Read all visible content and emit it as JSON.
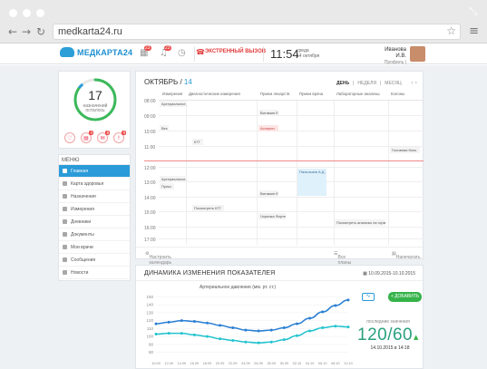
{
  "browser": {
    "url": "medkarta24.ru",
    "fullscreen_glyph": "⤡",
    "back_glyph": "←",
    "forward_glyph": "→",
    "reload_glyph": "↻",
    "star_glyph": "☆",
    "menu_glyph": "≡"
  },
  "header": {
    "logo": "МЕДКАРТА24",
    "badge_left": "23",
    "badge_mid": "23",
    "emergency": "ЭКСТРЕННЫЙ ВЫЗОВ",
    "time": "11:54",
    "weekday": "среда",
    "date": "14 октября",
    "user_name": "Иванова И.В.",
    "user_links": "Профиль | Выйти"
  },
  "widget": {
    "count": "17",
    "label_line1": "назначений",
    "label_line2": "осталось",
    "ring_fraction": 0.85,
    "icons": [
      {
        "name": "heart-icon",
        "glyph": "♡",
        "badge": ""
      },
      {
        "name": "clipboard-icon",
        "glyph": "▤",
        "badge": "4"
      },
      {
        "name": "mail-icon",
        "glyph": "✉",
        "badge": "8"
      }
    ],
    "alert_badge": "9"
  },
  "menu": {
    "title": "МЕНЮ",
    "items": [
      "Главная",
      "Карта здоровья",
      "Назначения",
      "Измерения",
      "Дневники",
      "Документы",
      "Мои врачи",
      "Сообщения",
      "Новости"
    ]
  },
  "calendar": {
    "month": "ОКТЯБРЬ",
    "day": "14",
    "view_day": "ДЕНЬ",
    "view_week": "НЕДЕЛЯ",
    "view_month": "МЕСЯЦ",
    "arrows": "‹ ›",
    "columns": [
      "Измерения",
      "Диагностические измерения",
      "Прием лекарств",
      "Прием врача",
      "Лабораторные анализы",
      "Колоны"
    ],
    "hours": [
      "08:00",
      "09:00",
      "10:00",
      "11:00",
      "12:00",
      "13:00",
      "14:00",
      "15:00",
      "16:00",
      "17:00"
    ],
    "events": {
      "e1": "Артериальное давление",
      "e2": "Вес",
      "e3": "Витамин Е",
      "e4": "Аспирин",
      "e5": "КТГ",
      "e6": "Головная боль",
      "e7": "Пальпьзев А.Д.",
      "e8": "Артериальное давление",
      "e9": "Пульс",
      "e10": "Витамин Е",
      "e11": "Посмотреть КТГ",
      "e12": "Чорника Форте",
      "e13": "Посмотреть анализы на гормоны"
    },
    "footer": {
      "configure": "Настроить календарь",
      "all_plans": "Все планы лечения",
      "print": "Напечатать"
    }
  },
  "dynamics": {
    "title": "ДИНАМИКА ИЗМЕНЕНИЯ ПОКАЗАТЕЛЕЯ",
    "range": "10.09.2015-10.10.2015",
    "add_button": "+ ДОБАВИТЬ",
    "toggle_glyph": "∿",
    "last_label": "последние значения",
    "last_value": "120/60",
    "last_arrow": "▲",
    "last_date": "14.10.2015 в 14:18"
  },
  "chart_data": {
    "type": "line",
    "title": "Артериальное давление (мм. рт. ст.)",
    "x": [
      "10.09",
      "12.09",
      "14.09",
      "16.09",
      "18.09",
      "20.09",
      "22.09",
      "24.09",
      "26.09",
      "28.09",
      "30.09",
      "02.10",
      "04.10",
      "06.10",
      "08.10",
      "10.10"
    ],
    "yticks": [
      80,
      90,
      100,
      110,
      120,
      130,
      140,
      150
    ],
    "ylim": [
      75,
      155
    ],
    "series": [
      {
        "color": "#2a7fd4",
        "values": [
          116,
          118,
          120,
          119,
          117,
          114,
          111,
          108,
          107,
          108,
          111,
          116,
          123,
          131,
          139,
          146
        ]
      },
      {
        "color": "#22c3cf",
        "values": [
          103,
          104,
          104,
          102,
          100,
          97,
          95,
          93,
          92,
          93,
          96,
          101,
          107,
          111,
          113,
          112
        ]
      }
    ]
  }
}
